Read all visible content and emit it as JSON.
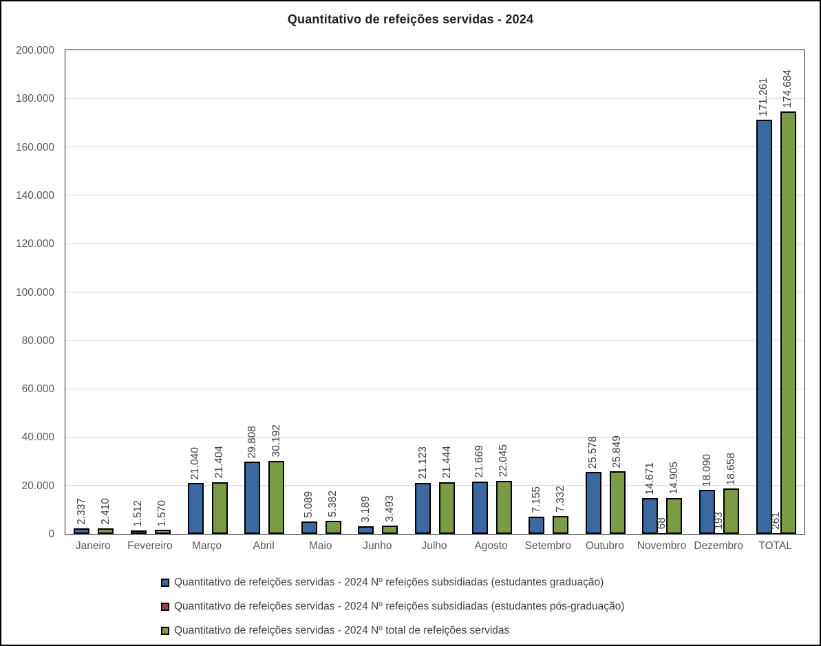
{
  "title": "Quantitativo de refeições servidas - 2024",
  "chart_data": {
    "type": "bar",
    "categories": [
      "Janeiro",
      "Fevereiro",
      "Março",
      "Abril",
      "Maio",
      "Junho",
      "Julho",
      "Agosto",
      "Setembro",
      "Outubro",
      "Novembro",
      "Dezembro",
      "TOTAL"
    ],
    "series": [
      {
        "name": "Quantitativo de refeições servidas - 2024 Nº refeições subsidiadas (estudantes graduação)",
        "color": "#3C68A2",
        "values": [
          2337,
          1512,
          21040,
          29808,
          5089,
          3189,
          21123,
          21669,
          7155,
          25578,
          14671,
          18090,
          171261
        ],
        "labels": [
          "2.337",
          "1.512",
          "21.040",
          "29.808",
          "5.089",
          "3.189",
          "21.123",
          "21.669",
          "7.155",
          "25.578",
          "14.671",
          "18.090",
          "171.261"
        ]
      },
      {
        "name": "Quantitativo de refeições servidas - 2024 Nº refeições subsidiadas (estudantes pós-graduação)",
        "color": "#A5423B",
        "values": [
          0,
          0,
          0,
          0,
          0,
          0,
          0,
          0,
          0,
          0,
          68,
          193,
          261
        ],
        "labels": [
          null,
          null,
          null,
          null,
          null,
          null,
          null,
          null,
          null,
          null,
          "68",
          "193",
          "261"
        ]
      },
      {
        "name": "Quantitativo de refeições servidas - 2024 Nº total de refeições servidas",
        "color": "#7B9B44",
        "values": [
          2410,
          1570,
          21404,
          30192,
          5382,
          3493,
          21444,
          22045,
          7332,
          25849,
          14905,
          18658,
          174684
        ],
        "labels": [
          "2.410",
          "1.570",
          "21.404",
          "30.192",
          "5.382",
          "3.493",
          "21.444",
          "22.045",
          "7.332",
          "25.849",
          "14.905",
          "18.658",
          "174.684"
        ]
      }
    ],
    "ylim": [
      0,
      200000
    ],
    "ytick_step": 20000,
    "ytick_labels": [
      "0",
      "20.000",
      "40.000",
      "60.000",
      "80.000",
      "100.000",
      "120.000",
      "140.000",
      "160.000",
      "180.000",
      "200.000"
    ],
    "grid": true,
    "legend_position": "bottom",
    "xlabel": "",
    "ylabel": ""
  },
  "colors": {
    "bar_border": "#000000",
    "grid_line": "#d9d9d9",
    "plot_border": "#1a1a1a",
    "outer_border": "#000000",
    "tick_text": "#595959",
    "data_label_text": "#404040",
    "title_text": "#1f1f1f"
  }
}
